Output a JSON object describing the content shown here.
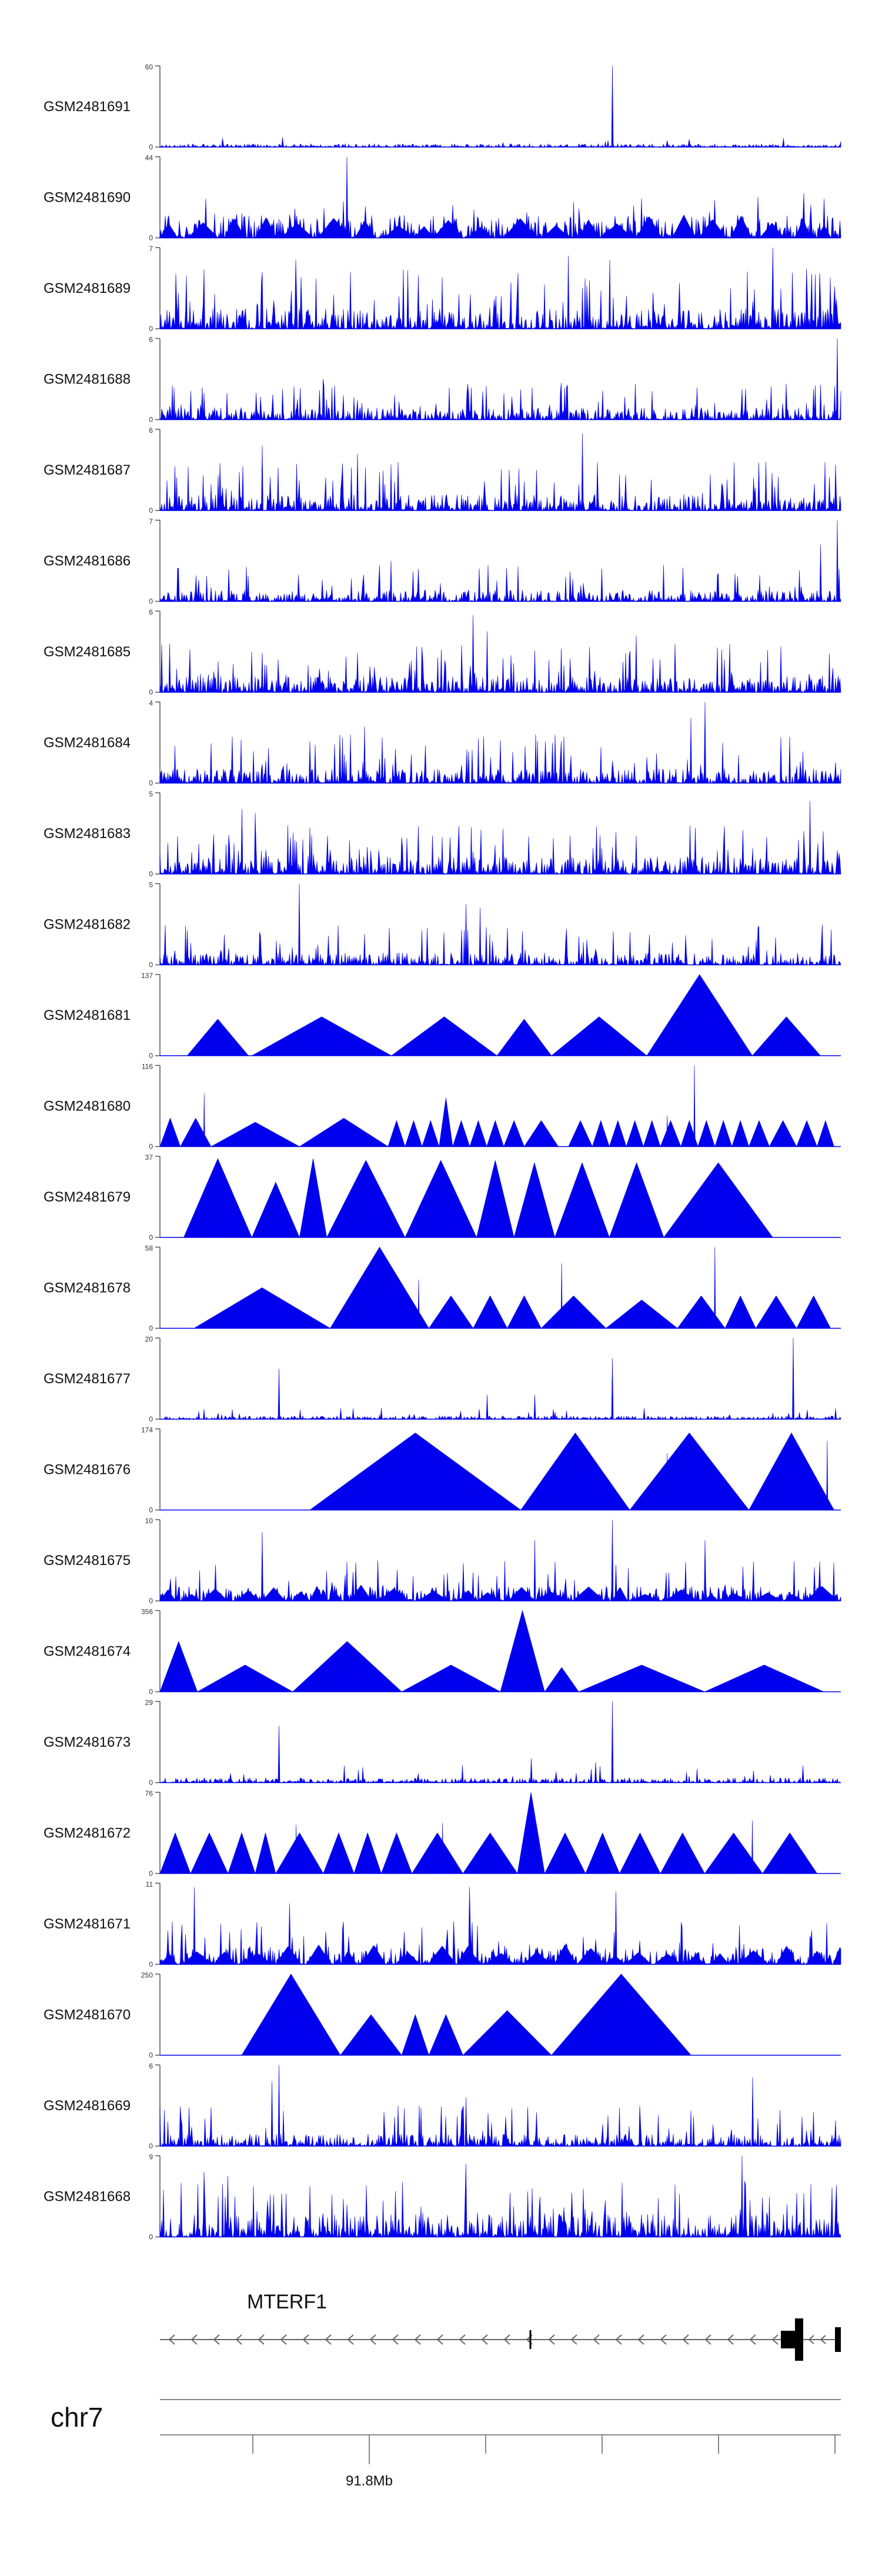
{
  "chart_data": {
    "type": "area",
    "title": "",
    "xlabel": "",
    "ylabel": "",
    "chromosome": "chr7",
    "xaxis_tick_label": "91.8Mb",
    "gene": {
      "name": "MTERF1",
      "strand": "-"
    },
    "colors": {
      "signal": "#0000ee",
      "axis": "#555555",
      "gene": "#000000",
      "text": "#111111"
    },
    "tracks": [
      {
        "name": "GSM2481691",
        "ymax": 60,
        "style": "noise",
        "base": 0.04,
        "spike": 0.12,
        "spikeProb": 0.01,
        "peaks": [
          [
            0.665,
            1.0
          ],
          [
            0.18,
            0.12
          ],
          [
            0.745,
            0.08
          ]
        ]
      },
      {
        "name": "GSM2481690",
        "ymax": 44,
        "style": "mixed",
        "base": 0.28,
        "spike": 0.55,
        "spikeProb": 0.04,
        "tri": 0.3,
        "peaks": [
          [
            0.275,
            1.0
          ],
          [
            0.27,
            0.45
          ],
          [
            0.945,
            0.55
          ],
          [
            0.975,
            0.48
          ]
        ]
      },
      {
        "name": "GSM2481689",
        "ymax": 7,
        "style": "noise",
        "base": 0.25,
        "spike": 0.75,
        "spikeProb": 0.1,
        "peaks": [
          [
            0.6,
            0.9
          ],
          [
            0.9,
            1.0
          ],
          [
            0.2,
            0.85
          ],
          [
            0.66,
            0.85
          ]
        ]
      },
      {
        "name": "GSM2481688",
        "ymax": 6,
        "style": "noise",
        "base": 0.15,
        "spike": 0.45,
        "spikeProb": 0.07,
        "peaks": [
          [
            0.995,
            1.0
          ],
          [
            0.24,
            0.5
          ],
          [
            0.59,
            0.45
          ]
        ]
      },
      {
        "name": "GSM2481687",
        "ymax": 6,
        "style": "noise",
        "base": 0.2,
        "spike": 0.6,
        "spikeProb": 0.08,
        "peaks": [
          [
            0.62,
            0.95
          ],
          [
            0.15,
            0.8
          ],
          [
            0.29,
            0.7
          ]
        ]
      },
      {
        "name": "GSM2481686",
        "ymax": 7,
        "style": "noise",
        "base": 0.14,
        "spike": 0.45,
        "spikeProb": 0.07,
        "peaks": [
          [
            0.995,
            1.0
          ],
          [
            0.97,
            0.7
          ],
          [
            0.34,
            0.5
          ]
        ]
      },
      {
        "name": "GSM2481685",
        "ymax": 6,
        "style": "noise",
        "base": 0.2,
        "spike": 0.6,
        "spikeProb": 0.08,
        "peaks": [
          [
            0.46,
            0.95
          ],
          [
            0.48,
            0.75
          ],
          [
            0.7,
            0.7
          ]
        ]
      },
      {
        "name": "GSM2481684",
        "ymax": 4,
        "style": "noise",
        "base": 0.18,
        "spike": 0.6,
        "spikeProb": 0.09,
        "peaks": [
          [
            0.8,
            1.0
          ],
          [
            0.78,
            0.8
          ],
          [
            0.3,
            0.7
          ]
        ]
      },
      {
        "name": "GSM2481683",
        "ymax": 5,
        "style": "noise",
        "base": 0.22,
        "spike": 0.6,
        "spikeProb": 0.1,
        "peaks": [
          [
            0.955,
            0.9
          ],
          [
            0.12,
            0.8
          ],
          [
            0.14,
            0.75
          ]
        ]
      },
      {
        "name": "GSM2481682",
        "ymax": 5,
        "style": "noise",
        "base": 0.15,
        "spike": 0.5,
        "spikeProb": 0.06,
        "peaks": [
          [
            0.205,
            1.0
          ],
          [
            0.45,
            0.75
          ],
          [
            0.47,
            0.7
          ]
        ]
      },
      {
        "name": "GSM2481681",
        "ymax": 137,
        "style": "tri",
        "tris": [
          [
            0.04,
            0.13,
            0.45
          ],
          [
            0.135,
            0.34,
            0.48
          ],
          [
            0.34,
            0.495,
            0.48
          ],
          [
            0.495,
            0.575,
            0.45
          ],
          [
            0.575,
            0.715,
            0.48
          ],
          [
            0.715,
            0.87,
            1.0
          ],
          [
            0.87,
            0.97,
            0.48
          ]
        ]
      },
      {
        "name": "GSM2481680",
        "ymax": 116,
        "style": "tri",
        "tris": [
          [
            0.0,
            0.03,
            0.35
          ],
          [
            0.03,
            0.075,
            0.35
          ],
          [
            0.075,
            0.205,
            0.3
          ],
          [
            0.205,
            0.335,
            0.35
          ],
          [
            0.335,
            0.36,
            0.32
          ],
          [
            0.36,
            0.385,
            0.32
          ],
          [
            0.385,
            0.41,
            0.32
          ],
          [
            0.41,
            0.43,
            0.6
          ],
          [
            0.43,
            0.455,
            0.32
          ],
          [
            0.455,
            0.48,
            0.32
          ],
          [
            0.48,
            0.505,
            0.32
          ],
          [
            0.505,
            0.535,
            0.32
          ],
          [
            0.535,
            0.585,
            0.32
          ],
          [
            0.585,
            0.6,
            0.0
          ],
          [
            0.6,
            0.635,
            0.32
          ],
          [
            0.635,
            0.66,
            0.32
          ],
          [
            0.66,
            0.685,
            0.32
          ],
          [
            0.685,
            0.71,
            0.32
          ],
          [
            0.71,
            0.735,
            0.32
          ],
          [
            0.735,
            0.765,
            0.32
          ],
          [
            0.765,
            0.79,
            0.32
          ],
          [
            0.79,
            0.815,
            0.32
          ],
          [
            0.815,
            0.84,
            0.32
          ],
          [
            0.84,
            0.865,
            0.32
          ],
          [
            0.865,
            0.895,
            0.32
          ],
          [
            0.895,
            0.935,
            0.32
          ],
          [
            0.935,
            0.965,
            0.32
          ],
          [
            0.965,
            0.99,
            0.32
          ]
        ],
        "peaks": [
          [
            0.065,
            0.65
          ],
          [
            0.785,
            1.0
          ],
          [
            0.745,
            0.38
          ]
        ]
      },
      {
        "name": "GSM2481679",
        "ymax": 37,
        "style": "tri",
        "tris": [
          [
            0.035,
            0.135,
            0.97
          ],
          [
            0.135,
            0.205,
            0.68
          ],
          [
            0.205,
            0.245,
            0.97
          ],
          [
            0.245,
            0.36,
            0.95
          ],
          [
            0.36,
            0.465,
            0.95
          ],
          [
            0.465,
            0.52,
            0.95
          ],
          [
            0.52,
            0.58,
            0.92
          ],
          [
            0.58,
            0.66,
            0.92
          ],
          [
            0.66,
            0.74,
            0.92
          ],
          [
            0.74,
            0.9,
            0.92
          ]
        ]
      },
      {
        "name": "GSM2481678",
        "ymax": 58,
        "style": "tri",
        "tris": [
          [
            0.05,
            0.25,
            0.5
          ],
          [
            0.25,
            0.395,
            1.0
          ],
          [
            0.395,
            0.46,
            0.4
          ],
          [
            0.46,
            0.51,
            0.4
          ],
          [
            0.51,
            0.56,
            0.4
          ],
          [
            0.56,
            0.655,
            0.4
          ],
          [
            0.655,
            0.76,
            0.35
          ],
          [
            0.76,
            0.83,
            0.4
          ],
          [
            0.83,
            0.875,
            0.4
          ],
          [
            0.875,
            0.935,
            0.4
          ],
          [
            0.935,
            0.985,
            0.4
          ]
        ],
        "peaks": [
          [
            0.59,
            0.8
          ],
          [
            0.815,
            1.0
          ],
          [
            0.38,
            0.6
          ]
        ]
      },
      {
        "name": "GSM2481677",
        "ymax": 20,
        "style": "noise",
        "base": 0.04,
        "spike": 0.14,
        "spikeProb": 0.03,
        "peaks": [
          [
            0.175,
            0.62
          ],
          [
            0.665,
            0.75
          ],
          [
            0.93,
            1.0
          ],
          [
            0.48,
            0.3
          ],
          [
            0.55,
            0.3
          ]
        ]
      },
      {
        "name": "GSM2481676",
        "ymax": 174,
        "style": "tri",
        "tris": [
          [
            0.22,
            0.53,
            0.95
          ],
          [
            0.53,
            0.69,
            0.95
          ],
          [
            0.69,
            0.865,
            0.95
          ],
          [
            0.865,
            0.99,
            0.95
          ]
        ],
        "peaks": [
          [
            0.755,
            0.52
          ],
          [
            0.745,
            0.7
          ],
          [
            0.98,
            0.85
          ]
        ]
      },
      {
        "name": "GSM2481675",
        "ymax": 10,
        "style": "mixed",
        "base": 0.18,
        "spike": 0.5,
        "spikeProb": 0.06,
        "tri": 0.2,
        "peaks": [
          [
            0.665,
            1.0
          ],
          [
            0.15,
            0.85
          ],
          [
            0.55,
            0.75
          ],
          [
            0.8,
            0.75
          ]
        ]
      },
      {
        "name": "GSM2481674",
        "ymax": 356,
        "style": "tri",
        "tris": [
          [
            0.0,
            0.055,
            0.62
          ],
          [
            0.055,
            0.195,
            0.33
          ],
          [
            0.195,
            0.355,
            0.62
          ],
          [
            0.355,
            0.5,
            0.33
          ],
          [
            0.5,
            0.565,
            1.0
          ],
          [
            0.565,
            0.615,
            0.3
          ],
          [
            0.615,
            0.8,
            0.33
          ],
          [
            0.8,
            0.975,
            0.33
          ]
        ]
      },
      {
        "name": "GSM2481673",
        "ymax": 29,
        "style": "noise",
        "base": 0.06,
        "spike": 0.22,
        "spikeProb": 0.04,
        "peaks": [
          [
            0.665,
            1.0
          ],
          [
            0.175,
            0.7
          ],
          [
            0.545,
            0.3
          ],
          [
            0.64,
            0.25
          ]
        ]
      },
      {
        "name": "GSM2481672",
        "ymax": 76,
        "style": "tri",
        "tris": [
          [
            0.0,
            0.045,
            0.5
          ],
          [
            0.045,
            0.1,
            0.5
          ],
          [
            0.1,
            0.14,
            0.5
          ],
          [
            0.14,
            0.17,
            0.5
          ],
          [
            0.17,
            0.24,
            0.5
          ],
          [
            0.24,
            0.285,
            0.5
          ],
          [
            0.285,
            0.325,
            0.5
          ],
          [
            0.325,
            0.37,
            0.5
          ],
          [
            0.37,
            0.445,
            0.5
          ],
          [
            0.445,
            0.525,
            0.5
          ],
          [
            0.525,
            0.565,
            1.0
          ],
          [
            0.565,
            0.625,
            0.5
          ],
          [
            0.625,
            0.675,
            0.5
          ],
          [
            0.675,
            0.735,
            0.5
          ],
          [
            0.735,
            0.8,
            0.5
          ],
          [
            0.8,
            0.885,
            0.5
          ],
          [
            0.885,
            0.965,
            0.5
          ]
        ],
        "peaks": [
          [
            0.2,
            0.6
          ],
          [
            0.415,
            0.62
          ],
          [
            0.87,
            0.65
          ]
        ]
      },
      {
        "name": "GSM2481671",
        "ymax": 11,
        "style": "mixed",
        "base": 0.2,
        "spike": 0.55,
        "spikeProb": 0.07,
        "tri": 0.25,
        "peaks": [
          [
            0.05,
            0.95
          ],
          [
            0.455,
            0.95
          ],
          [
            0.67,
            0.9
          ],
          [
            0.19,
            0.75
          ]
        ]
      },
      {
        "name": "GSM2481670",
        "ymax": 250,
        "style": "tri",
        "tris": [
          [
            0.12,
            0.265,
            1.0
          ],
          [
            0.265,
            0.355,
            0.5
          ],
          [
            0.355,
            0.395,
            0.5
          ],
          [
            0.395,
            0.445,
            0.5
          ],
          [
            0.445,
            0.575,
            0.55
          ],
          [
            0.575,
            0.78,
            1.0
          ]
        ]
      },
      {
        "name": "GSM2481669",
        "ymax": 6,
        "style": "noise",
        "base": 0.15,
        "spike": 0.5,
        "spikeProb": 0.07,
        "peaks": [
          [
            0.175,
            1.0
          ],
          [
            0.165,
            0.8
          ],
          [
            0.87,
            0.85
          ],
          [
            0.45,
            0.6
          ]
        ]
      },
      {
        "name": "GSM2481668",
        "ymax": 9,
        "style": "noise",
        "base": 0.28,
        "spike": 0.7,
        "spikeProb": 0.08,
        "peaks": [
          [
            0.855,
            1.0
          ],
          [
            0.45,
            0.9
          ],
          [
            0.065,
            0.8
          ],
          [
            0.1,
            0.75
          ]
        ]
      }
    ]
  }
}
